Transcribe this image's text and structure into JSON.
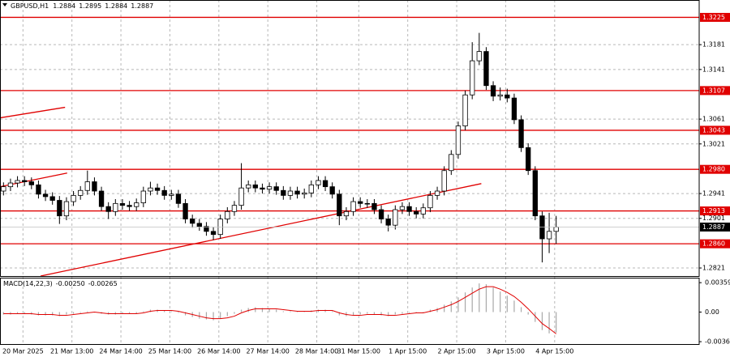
{
  "chart_data": [
    {
      "type": "candlestick",
      "title": "GBPUSD,H1",
      "header_ohlc": [
        1.2884,
        1.2895,
        1.2884,
        1.2887
      ],
      "categories": [
        "20 Mar 2025",
        null,
        null,
        null,
        null,
        null,
        null,
        "21 Mar 13:00",
        null,
        null,
        null,
        null,
        null,
        null,
        "24 Mar 14:00",
        null,
        null,
        null,
        null,
        null,
        null,
        "25 Mar 14:00",
        null,
        null,
        null,
        null,
        null,
        null,
        "26 Mar 14:00",
        null,
        null,
        null,
        null,
        null,
        null,
        "27 Mar 14:00",
        null,
        null,
        null,
        null,
        null,
        null,
        "28 Mar 14:00",
        null,
        null,
        null,
        null,
        null,
        "31 Mar 15:00",
        null,
        null,
        null,
        null,
        null,
        null,
        "1 Apr 15:00",
        null,
        null,
        null,
        null,
        null,
        null,
        "2 Apr 15:00",
        null,
        null,
        null,
        null,
        null,
        null,
        "3 Apr 15:00",
        null,
        null,
        null,
        null,
        null,
        null,
        "4 Apr 15:00",
        null,
        null,
        null
      ],
      "open": [
        1.2945,
        1.2952,
        1.2958,
        1.2962,
        1.296,
        1.2955,
        1.294,
        1.2936,
        1.293,
        1.2905,
        1.2928,
        1.2938,
        1.2946,
        1.296,
        1.2945,
        1.292,
        1.2912,
        1.2925,
        1.2922,
        1.292,
        1.2926,
        1.2945,
        1.295,
        1.2946,
        1.2938,
        1.294,
        1.2925,
        1.29,
        1.2893,
        1.2888,
        1.288,
        1.2875,
        1.29,
        1.2912,
        1.2922,
        1.295,
        1.2955,
        1.295,
        1.2948,
        1.2952,
        1.2946,
        1.2938,
        1.2945,
        1.294,
        1.2942,
        1.2955,
        1.2962,
        1.2952,
        1.294,
        1.2905,
        1.2912,
        1.2928,
        1.2925,
        1.2925,
        1.2915,
        1.29,
        1.289,
        1.2915,
        1.292,
        1.2912,
        1.2908,
        1.2918,
        1.2938,
        1.2945,
        1.2978,
        1.3004,
        1.305,
        1.31,
        1.3155,
        1.317,
        1.3115,
        1.3098,
        1.31,
        1.3095,
        1.306,
        1.3015,
        1.2978,
        1.2905,
        1.2868,
        1.288
      ],
      "high": [
        1.2959,
        1.2965,
        1.2969,
        1.2969,
        1.2967,
        1.2962,
        1.2947,
        1.2943,
        1.2937,
        1.2935,
        1.2945,
        1.2953,
        1.2978,
        1.2967,
        1.2952,
        1.2927,
        1.2932,
        1.2932,
        1.2929,
        1.2933,
        1.2952,
        1.296,
        1.2957,
        1.2953,
        1.2947,
        1.2947,
        1.2932,
        1.2907,
        1.29,
        1.2895,
        1.2887,
        1.2907,
        1.2919,
        1.2929,
        1.299,
        1.2962,
        1.2962,
        1.2957,
        1.2959,
        1.2959,
        1.2953,
        1.2952,
        1.2952,
        1.2949,
        1.2962,
        1.2969,
        1.2969,
        1.2959,
        1.2947,
        1.2919,
        1.2935,
        1.2935,
        1.2932,
        1.2932,
        1.2922,
        1.2907,
        1.2922,
        1.2927,
        1.2927,
        1.2919,
        1.2925,
        1.2945,
        1.2952,
        1.2985,
        1.3011,
        1.3057,
        1.3107,
        1.3185,
        1.32,
        1.3177,
        1.3122,
        1.3112,
        1.311,
        1.3102,
        1.3067,
        1.3022,
        1.2985,
        1.2912,
        1.291,
        1.2905
      ],
      "low": [
        1.2938,
        1.2945,
        1.2951,
        1.2953,
        1.2948,
        1.2933,
        1.2929,
        1.2923,
        1.2892,
        1.2898,
        1.2921,
        1.2931,
        1.2939,
        1.2938,
        1.2913,
        1.29,
        1.2905,
        1.2915,
        1.2913,
        1.2913,
        1.2919,
        1.2938,
        1.2939,
        1.2931,
        1.2931,
        1.2918,
        1.2893,
        1.2886,
        1.2881,
        1.2873,
        1.2866,
        1.2868,
        1.2893,
        1.2905,
        1.2915,
        1.2943,
        1.2943,
        1.2941,
        1.2941,
        1.2939,
        1.2931,
        1.2931,
        1.2933,
        1.2933,
        1.2935,
        1.2948,
        1.2945,
        1.2933,
        1.289,
        1.2898,
        1.2905,
        1.2918,
        1.2918,
        1.2908,
        1.2893,
        1.288,
        1.2883,
        1.2908,
        1.2905,
        1.2901,
        1.2901,
        1.2911,
        1.2931,
        1.2938,
        1.2971,
        1.2997,
        1.3043,
        1.3093,
        1.3148,
        1.3108,
        1.309,
        1.3091,
        1.3088,
        1.3053,
        1.3008,
        1.2971,
        1.2898,
        1.283,
        1.2845,
        1.286
      ],
      "close": [
        1.2952,
        1.2958,
        1.2962,
        1.296,
        1.2955,
        1.294,
        1.2936,
        1.293,
        1.2905,
        1.2928,
        1.2938,
        1.2946,
        1.296,
        1.2945,
        1.292,
        1.2912,
        1.2925,
        1.2922,
        1.292,
        1.2926,
        1.2945,
        1.295,
        1.2946,
        1.2938,
        1.294,
        1.2925,
        1.29,
        1.2893,
        1.2888,
        1.288,
        1.2875,
        1.29,
        1.2912,
        1.2922,
        1.295,
        1.2955,
        1.295,
        1.2948,
        1.2952,
        1.2946,
        1.2938,
        1.2945,
        1.294,
        1.2942,
        1.2955,
        1.2962,
        1.2952,
        1.294,
        1.2905,
        1.2912,
        1.2928,
        1.2925,
        1.2925,
        1.2915,
        1.29,
        1.289,
        1.2915,
        1.292,
        1.2912,
        1.2908,
        1.2918,
        1.2938,
        1.2945,
        1.2978,
        1.3004,
        1.305,
        1.31,
        1.3155,
        1.317,
        1.3115,
        1.3098,
        1.31,
        1.3095,
        1.306,
        1.3015,
        1.2978,
        1.2905,
        1.2868,
        1.288,
        1.2887
      ],
      "color": "#000000",
      "ylim": [
        1.2808,
        1.3253
      ],
      "yticks": [
        1.2821,
        1.2901,
        1.2941,
        1.3021,
        1.3061,
        1.3141,
        1.3181
      ],
      "grid": true,
      "levels": [
        1.3225,
        1.3107,
        1.3043,
        {
          "value": 1.298,
          "label": "1.2980"
        },
        1.2913,
        {
          "value": 1.286,
          "label": "1.2860"
        }
      ],
      "level_color": "#e00000",
      "current_price": 1.2887,
      "trend_lines": [
        {
          "x": [
            0,
            9.3
          ],
          "y": [
            1.3063,
            1.308
          ]
        },
        {
          "x": [
            0,
            9.6
          ],
          "y": [
            1.2952,
            1.2974
          ]
        },
        {
          "x": [
            5.8,
            68.8
          ],
          "y": [
            1.2808,
            1.2957
          ]
        }
      ]
    },
    {
      "type": "macd",
      "title": "MACD(14,22,3)",
      "current": [
        {
          "value": -0.0025,
          "label": "-0.00250"
        },
        {
          "value": -0.00265,
          "label": "-0.00265"
        }
      ],
      "ylim": [
        -0.004,
        0.0042
      ],
      "yticks": [
        0.00359,
        {
          "value": 0,
          "label": "0.00"
        },
        -0.00361
      ],
      "series": [
        {
          "type": "bar",
          "color": "#a8a8a8",
          "values": [
            -0.0003,
            -0.0003,
            -0.0002,
            -0.0002,
            -0.0003,
            -0.0004,
            -0.0004,
            -0.0004,
            -0.0005,
            -0.0003,
            -0.0002,
            -0.0001,
            0.0001,
            0,
            -0.0002,
            -0.0003,
            -0.0003,
            -0.0002,
            -0.0002,
            -0.0002,
            0.0001,
            0.0003,
            0.0003,
            0.0002,
            0.0001,
            -0.0001,
            -0.0004,
            -0.0006,
            -0.0008,
            -0.0009,
            -0.001,
            -0.0008,
            -0.0005,
            -0.0002,
            0.0003,
            0.0005,
            0.0006,
            0.0005,
            0.0004,
            0.0003,
            0.0001,
            0.0001,
            0,
            0.0001,
            0.0002,
            0.0003,
            0.0003,
            0.0001,
            -0.0004,
            -0.0005,
            -0.0004,
            -0.0003,
            -0.0002,
            -0.0003,
            -0.0004,
            -0.0005,
            -0.0003,
            -0.0002,
            -0.0001,
            -0.0001,
            0,
            0.0003,
            0.0005,
            0.0009,
            0.0013,
            0.0018,
            0.0024,
            0.003,
            0.0035,
            0.0034,
            0.003,
            0.0025,
            0.002,
            0.0014,
            0.0006,
            -0.0003,
            -0.0012,
            -0.0022,
            -0.0026,
            -0.0025
          ]
        },
        {
          "type": "line",
          "color": "#e00000",
          "values": [
            -0.0002,
            -0.0002,
            -0.0002,
            -0.0002,
            -0.0002,
            -0.0003,
            -0.0003,
            -0.0003,
            -0.0004,
            -0.0004,
            -0.0003,
            -0.0002,
            -0.0001,
            0,
            -0.0001,
            -0.0002,
            -0.0002,
            -0.0002,
            -0.0002,
            -0.0002,
            -0.0001,
            0.0001,
            0.0002,
            0.0002,
            0.0002,
            0.0001,
            -0.0001,
            -0.0003,
            -0.0005,
            -0.0007,
            -0.0008,
            -0.0008,
            -0.0007,
            -0.0005,
            -0.0001,
            0.0002,
            0.0004,
            0.0004,
            0.0004,
            0.0004,
            0.0003,
            0.0002,
            0.0001,
            0.0001,
            0.0001,
            0.0002,
            0.0002,
            0.0002,
            -0.0001,
            -0.0003,
            -0.0004,
            -0.0004,
            -0.0003,
            -0.0003,
            -0.0003,
            -0.0004,
            -0.0004,
            -0.0003,
            -0.0002,
            -0.0001,
            -0.0001,
            0.0001,
            0.0003,
            0.0006,
            0.0009,
            0.0013,
            0.0018,
            0.0023,
            0.0028,
            0.0031,
            0.0031,
            0.0028,
            0.0024,
            0.0019,
            0.0012,
            0.0004,
            -0.0005,
            -0.0014,
            -0.002,
            -0.00265
          ]
        }
      ]
    }
  ]
}
